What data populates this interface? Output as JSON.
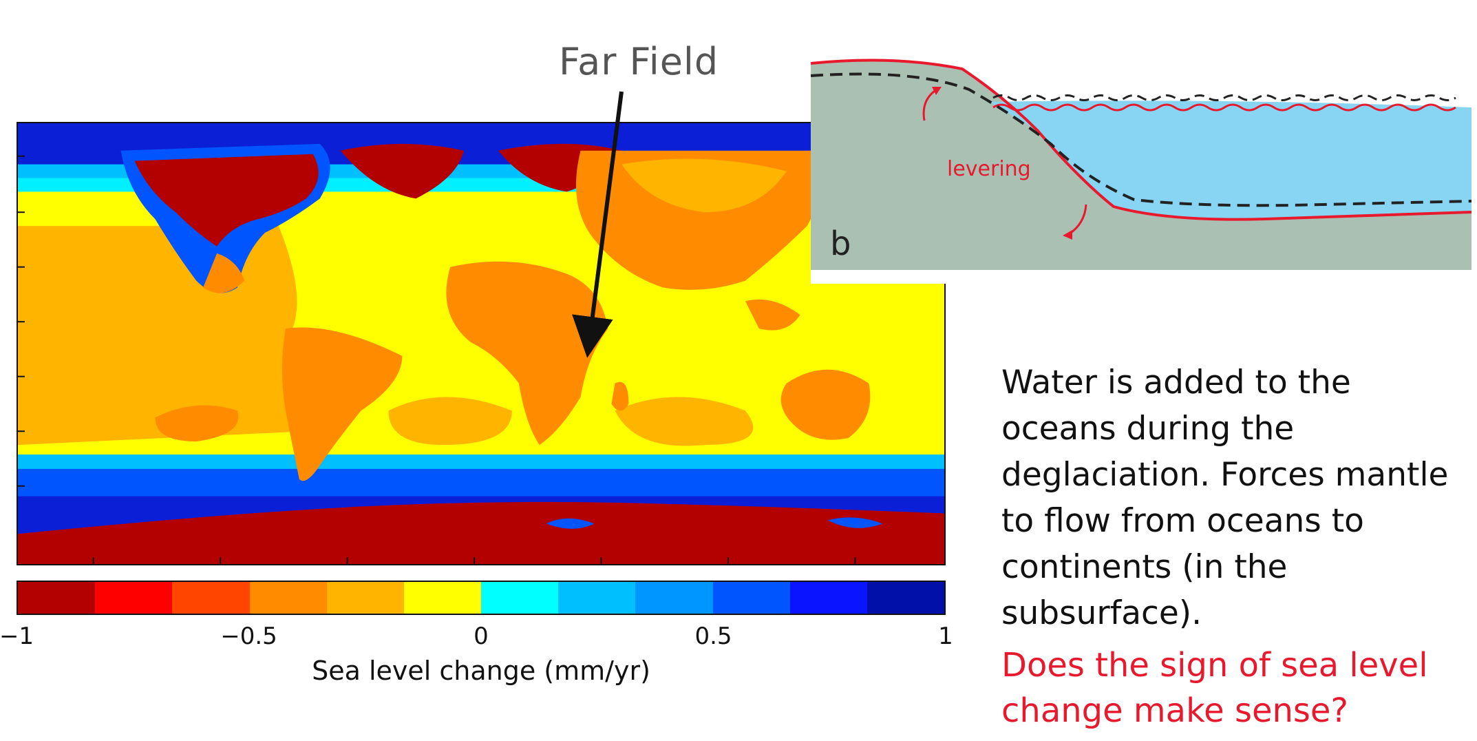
{
  "map": {
    "colorbar": {
      "label": "Sea level change (mm/yr)",
      "ticks": [
        {
          "value": -1,
          "label": "−1"
        },
        {
          "value": -0.5,
          "label": "−0.5"
        },
        {
          "value": 0,
          "label": "0"
        },
        {
          "value": 0.5,
          "label": "0.5"
        },
        {
          "value": 1,
          "label": "1"
        }
      ],
      "range": [
        -1,
        1
      ],
      "colors": [
        "#b30000",
        "#ff0000",
        "#ff4500",
        "#ff8c00",
        "#ffb400",
        "#ffff00",
        "#00ffff",
        "#00bfff",
        "#0096ff",
        "#0055ff",
        "#0a14ff",
        "#0010a8"
      ]
    },
    "colors": {
      "ocean_positive": "#0b1fd6",
      "continent_negative": "#ff8c00",
      "ice_negative": "#b30000",
      "far_field_positive": "#ffff00",
      "shelf_cyan": "#00f0ff"
    }
  },
  "annotation": {
    "far_field": "Far Field"
  },
  "diagram": {
    "panel_letter": "b",
    "levering_label": "levering",
    "colors": {
      "land": "#a9c0b2",
      "water": "#87d5f3",
      "line_red": "#e8192c",
      "line_dashed": "#222222"
    }
  },
  "text": {
    "body": "Water is added to the oceans during the deglaciation. Forces mantle to flow from oceans to continents (in the subsurface).",
    "question": "Does the sign of sea level change make sense?"
  }
}
